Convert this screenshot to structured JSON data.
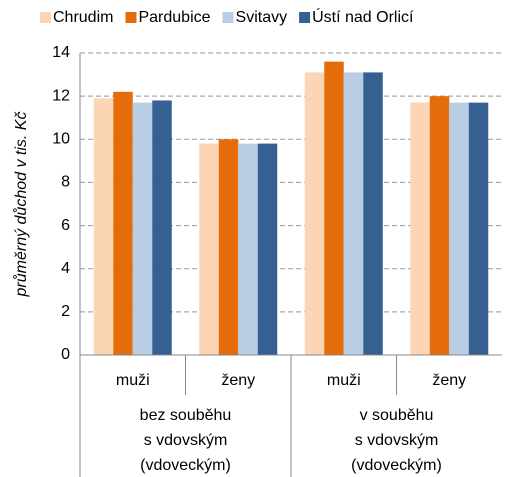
{
  "chart_data": {
    "type": "bar",
    "y_label": "průměrný důchod v tis. Kč",
    "categories": [
      "muži",
      "ženy",
      "muži",
      "ženy"
    ],
    "group_labels": [
      [
        "bez souběhu",
        "s vdovským",
        "(vdoveckým)"
      ],
      [
        "v souběhu",
        "s vdovským",
        "(vdoveckým)"
      ]
    ],
    "series": [
      {
        "name": "Chrudim",
        "color": "#fcd5b5",
        "values": [
          11.9,
          9.8,
          13.1,
          11.7
        ]
      },
      {
        "name": "Pardubice",
        "color": "#e46c0a",
        "values": [
          12.2,
          10.0,
          13.6,
          12.0
        ]
      },
      {
        "name": "Svitavy",
        "color": "#b9cde5",
        "values": [
          11.7,
          9.8,
          13.1,
          11.7
        ]
      },
      {
        "name": "Ústí nad Orlicí",
        "color": "#376092",
        "values": [
          11.8,
          9.8,
          13.1,
          11.7
        ]
      }
    ],
    "ylim": [
      0,
      14
    ],
    "yticks": [
      0,
      2,
      4,
      6,
      8,
      10,
      12,
      14
    ],
    "grid": true
  }
}
